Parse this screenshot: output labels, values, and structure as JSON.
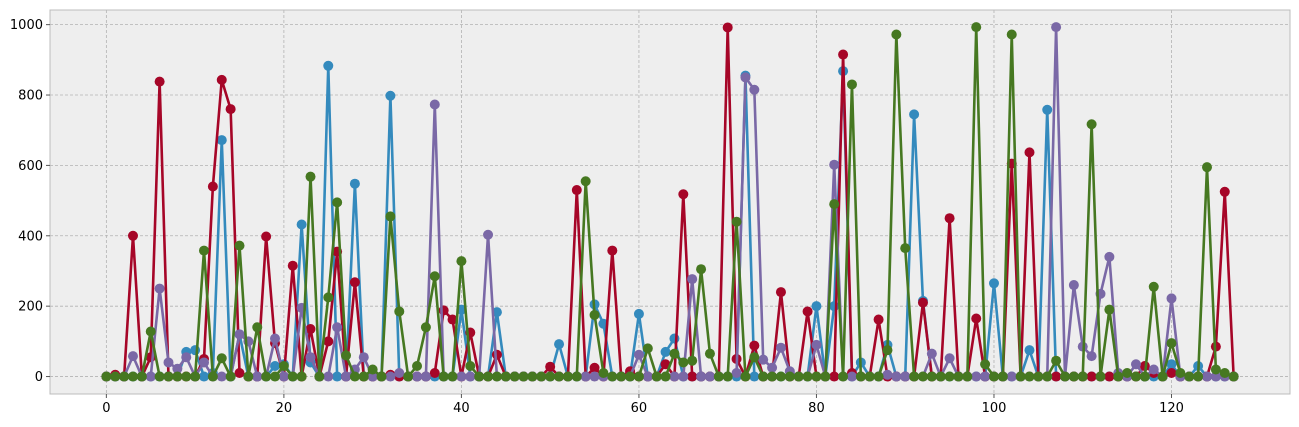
{
  "chart_data": {
    "type": "line",
    "title": "",
    "xlabel": "",
    "ylabel": "",
    "xlim": [
      -6.35,
      133.35
    ],
    "ylim": [
      -49.6,
      1041.6
    ],
    "xticks": [
      0,
      20,
      40,
      60,
      80,
      100,
      120
    ],
    "yticks": [
      0,
      200,
      400,
      600,
      800,
      1000
    ],
    "grid": true,
    "markers": "circle",
    "x_start": 0,
    "series": [
      {
        "color": "#348ABD",
        "values": [
          0,
          0,
          0,
          0,
          0,
          0,
          0,
          0,
          0,
          70,
          75,
          0,
          10,
          672,
          0,
          120,
          0,
          0,
          0,
          30,
          35,
          0,
          432,
          40,
          0,
          883,
          0,
          0,
          548,
          0,
          0,
          0,
          798,
          0,
          0,
          0,
          0,
          0,
          0,
          0,
          190,
          0,
          0,
          0,
          183,
          0,
          0,
          0,
          0,
          0,
          0,
          92,
          0,
          0,
          0,
          205,
          150,
          0,
          0,
          0,
          178,
          0,
          0,
          70,
          108,
          0,
          0,
          0,
          0,
          0,
          0,
          0,
          855,
          0,
          0,
          0,
          0,
          0,
          0,
          0,
          200,
          0,
          200,
          868,
          0,
          40,
          0,
          0,
          90,
          0,
          0,
          745,
          215,
          0,
          0,
          0,
          0,
          0,
          0,
          0,
          265,
          0,
          0,
          0,
          75,
          0,
          758,
          0,
          0,
          0,
          0,
          0,
          0,
          0,
          0,
          0,
          0,
          0,
          0,
          0,
          35,
          0,
          0,
          30,
          0,
          0,
          0,
          0
        ]
      },
      {
        "color": "#A60628",
        "values": [
          0,
          5,
          0,
          400,
          0,
          55,
          838,
          0,
          0,
          0,
          0,
          50,
          540,
          843,
          760,
          10,
          0,
          0,
          398,
          95,
          0,
          315,
          0,
          135,
          0,
          100,
          355,
          0,
          268,
          0,
          0,
          0,
          5,
          0,
          0,
          0,
          0,
          10,
          188,
          162,
          0,
          125,
          0,
          0,
          62,
          0,
          0,
          0,
          0,
          0,
          28,
          0,
          0,
          530,
          0,
          25,
          0,
          358,
          0,
          15,
          0,
          0,
          0,
          35,
          0,
          518,
          0,
          0,
          0,
          0,
          992,
          50,
          0,
          88,
          0,
          0,
          240,
          0,
          0,
          185,
          0,
          0,
          0,
          915,
          10,
          0,
          0,
          162,
          0,
          0,
          0,
          0,
          210,
          0,
          0,
          450,
          0,
          0,
          165,
          0,
          0,
          0,
          605,
          0,
          637,
          0,
          0,
          0,
          0,
          0,
          0,
          0,
          0,
          0,
          0,
          0,
          0,
          30,
          10,
          0,
          10,
          0,
          0,
          0,
          0,
          85,
          525,
          0
        ]
      },
      {
        "color": "#7A68A6",
        "values": [
          0,
          0,
          0,
          58,
          0,
          0,
          250,
          40,
          22,
          55,
          0,
          40,
          0,
          0,
          0,
          120,
          100,
          0,
          0,
          108,
          0,
          0,
          195,
          55,
          0,
          0,
          140,
          0,
          20,
          55,
          0,
          0,
          0,
          10,
          0,
          0,
          0,
          773,
          0,
          0,
          0,
          0,
          0,
          403,
          0,
          0,
          0,
          0,
          0,
          0,
          0,
          0,
          0,
          0,
          0,
          0,
          0,
          0,
          0,
          0,
          62,
          0,
          0,
          0,
          0,
          0,
          277,
          0,
          0,
          0,
          0,
          10,
          850,
          815,
          48,
          25,
          82,
          15,
          0,
          0,
          90,
          0,
          602,
          0,
          0,
          0,
          0,
          0,
          5,
          0,
          0,
          0,
          0,
          65,
          0,
          52,
          0,
          0,
          0,
          0,
          0,
          0,
          0,
          0,
          0,
          0,
          0,
          993,
          0,
          260,
          85,
          58,
          235,
          340,
          10,
          0,
          35,
          0,
          20,
          0,
          222,
          0,
          0,
          0,
          0,
          0,
          0,
          0
        ]
      },
      {
        "color": "#467821",
        "values": [
          0,
          0,
          0,
          0,
          0,
          128,
          0,
          0,
          0,
          0,
          0,
          358,
          0,
          52,
          0,
          372,
          0,
          140,
          0,
          0,
          30,
          0,
          0,
          568,
          0,
          225,
          495,
          60,
          0,
          0,
          20,
          0,
          455,
          185,
          0,
          30,
          140,
          285,
          0,
          0,
          328,
          30,
          0,
          0,
          0,
          0,
          0,
          0,
          0,
          0,
          0,
          0,
          0,
          0,
          555,
          175,
          10,
          0,
          0,
          0,
          0,
          80,
          0,
          0,
          65,
          40,
          45,
          305,
          65,
          0,
          0,
          440,
          0,
          55,
          0,
          0,
          0,
          0,
          0,
          0,
          0,
          0,
          490,
          0,
          830,
          0,
          0,
          0,
          75,
          972,
          365,
          0,
          0,
          0,
          0,
          0,
          0,
          0,
          993,
          35,
          0,
          0,
          972,
          0,
          0,
          0,
          0,
          45,
          0,
          0,
          0,
          717,
          0,
          190,
          0,
          10,
          0,
          0,
          255,
          0,
          95,
          10,
          0,
          0,
          595,
          20,
          10,
          0
        ]
      }
    ],
    "style": {
      "background": "#EEEEEE",
      "grid_color": "#B2B2B2",
      "frame_color": "#BCBCBC"
    }
  }
}
